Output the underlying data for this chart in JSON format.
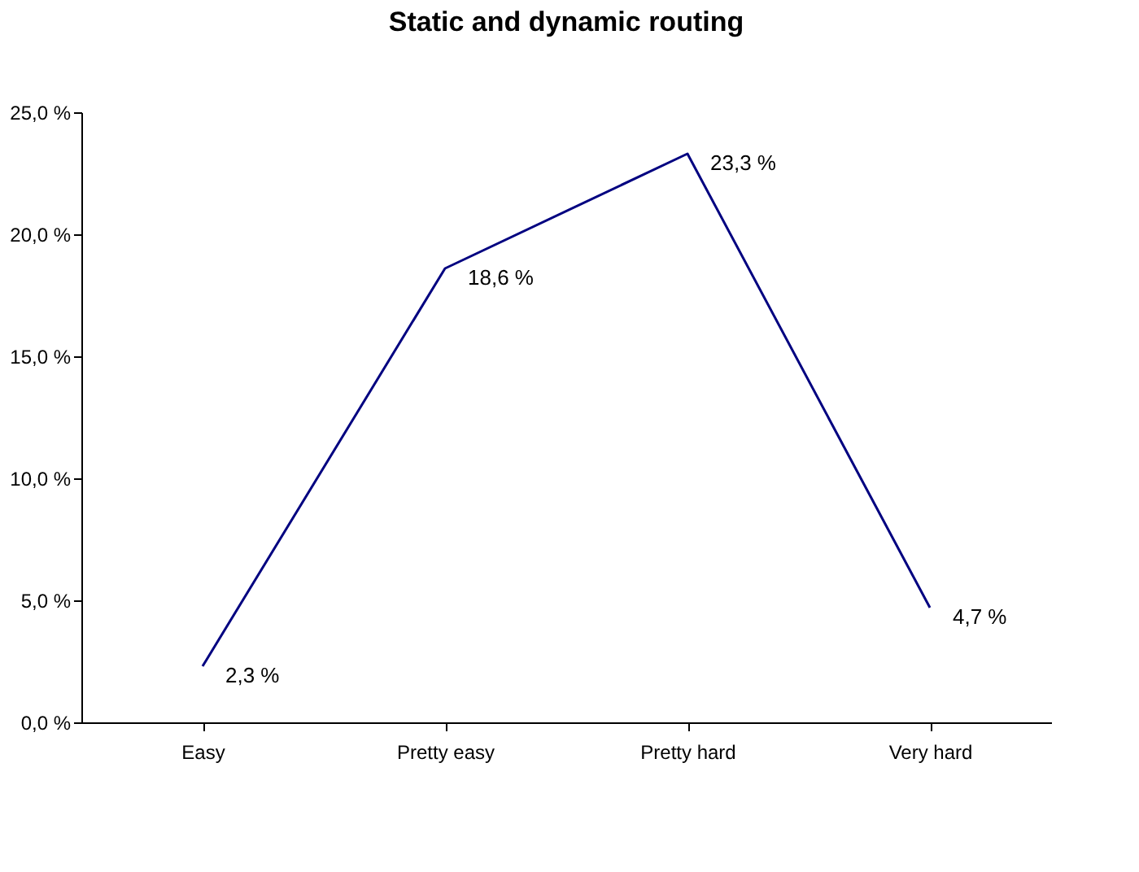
{
  "chart_data": {
    "type": "line",
    "title": "Static and dynamic routing",
    "categories": [
      "Easy",
      "Pretty easy",
      "Pretty hard",
      "Very hard"
    ],
    "series": [
      {
        "color": "#000080",
        "values": [
          2.3,
          18.6,
          23.3,
          4.7
        ],
        "value_labels": [
          "2,3 %",
          "18,6 %",
          "23,3 %",
          "4,7 %"
        ]
      }
    ],
    "ylim": [
      0,
      25
    ],
    "yticks": [
      {
        "value": 0,
        "label": "0,0 %"
      },
      {
        "value": 5,
        "label": "5,0 %"
      },
      {
        "value": 10,
        "label": "10,0 %"
      },
      {
        "value": 15,
        "label": "15,0 %"
      },
      {
        "value": 20,
        "label": "20,0 %"
      },
      {
        "value": 25,
        "label": "25,0 %"
      }
    ],
    "grid": false,
    "marker": "none",
    "line_style": "solid"
  }
}
